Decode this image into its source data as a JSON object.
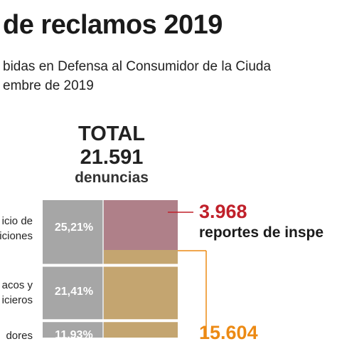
{
  "header": {
    "title": "de reclamos 2019",
    "subtitle_lines": [
      "bidas en Defensa al Consumidor de la Ciuda",
      "embre de 2019"
    ]
  },
  "colors": {
    "bar_gray": "#a6a6a6",
    "inspection_overlay": "#b07c86",
    "complaints_overlay": "#c8a56a",
    "separator": "#ffffff",
    "inspection_accent": "#c0202a",
    "complaints_accent": "#ec8a14"
  },
  "chart_data": {
    "type": "bar",
    "stacked": true,
    "orientation": "vertical-stack",
    "total": {
      "label": "TOTAL",
      "value": "21.591",
      "unit": "denuncias"
    },
    "categories": [
      "icio de\niciones",
      "acos y\nicieros",
      "dores"
    ],
    "values": [
      25.21,
      21.41,
      null
    ],
    "value_labels": [
      "25,21%",
      "21,41%",
      "11,93%"
    ],
    "series": [
      {
        "name": "reportes de inspe",
        "value": "3.968"
      },
      {
        "name": "",
        "value": "15.604"
      }
    ]
  }
}
